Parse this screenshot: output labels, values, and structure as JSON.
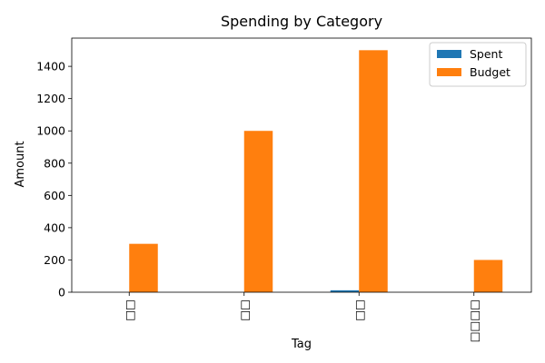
{
  "chart_data": {
    "type": "bar",
    "title": "Spending by Category",
    "xlabel": "Tag",
    "ylabel": "Amount",
    "categories": [
      "□□",
      "□□",
      "□□",
      "□□□□"
    ],
    "series": [
      {
        "name": "Spent",
        "values": [
          0,
          0,
          12,
          0
        ],
        "color": "#1f77b4"
      },
      {
        "name": "Budget",
        "values": [
          300,
          1000,
          1500,
          200
        ],
        "color": "#ff7f0e"
      }
    ],
    "ylim": [
      0,
      1575
    ],
    "yticks": [
      0,
      200,
      400,
      600,
      800,
      1000,
      1200,
      1400
    ],
    "grid": false,
    "legend": "top-right",
    "category_label_rotation": 90
  }
}
